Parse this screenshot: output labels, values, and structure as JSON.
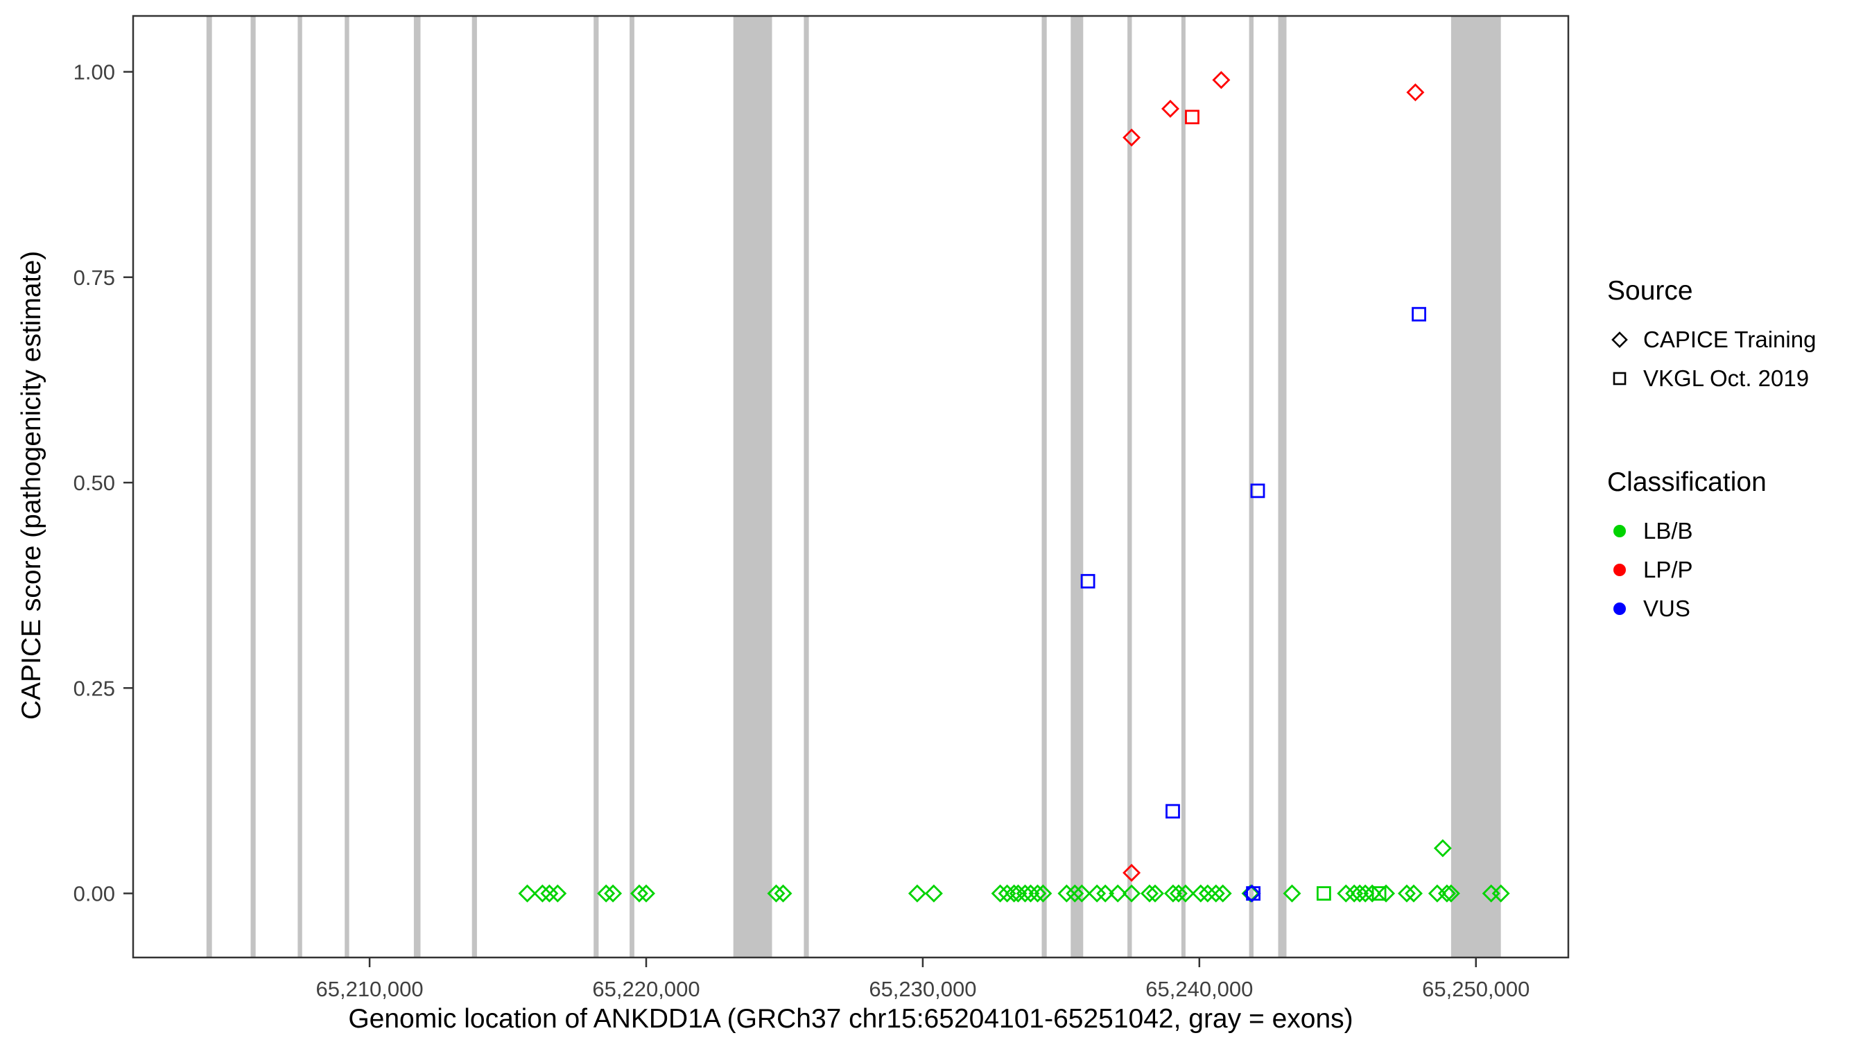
{
  "figure": {
    "x_axis_title": "Genomic location of ANKDD1A (GRCh37 chr15:65204101-65251042, gray = exons)",
    "y_axis_title": "CAPICE score (pathogenicity estimate)"
  },
  "legend": {
    "source": {
      "title": "Source",
      "items": [
        {
          "label": "CAPICE Training",
          "shape": "diamond"
        },
        {
          "label": "VKGL Oct. 2019",
          "shape": "square"
        }
      ]
    },
    "classification": {
      "title": "Classification",
      "items": [
        {
          "label": "LB/B",
          "color": "#00D300"
        },
        {
          "label": "LP/P",
          "color": "#FF0000"
        },
        {
          "label": "VUS",
          "color": "#0000FF"
        }
      ]
    }
  },
  "chart_data": {
    "type": "scatter",
    "title": "",
    "xlabel": "Genomic location of ANKDD1A (GRCh37 chr15:65204101-65251042, gray = exons)",
    "ylabel": "CAPICE score (pathogenicity estimate)",
    "xlim": [
      65201450,
      65253340
    ],
    "ylim": [
      -0.078,
      1.068
    ],
    "grid": false,
    "legend_position": "right",
    "xticks": [
      {
        "value": 65210000,
        "label": "65,210,000"
      },
      {
        "value": 65220000,
        "label": "65,220,000"
      },
      {
        "value": 65230000,
        "label": "65,230,000"
      },
      {
        "value": 65240000,
        "label": "65,240,000"
      },
      {
        "value": 65250000,
        "label": "65,250,000"
      }
    ],
    "yticks": [
      {
        "value": 0.0,
        "label": "0.00"
      },
      {
        "value": 0.25,
        "label": "0.25"
      },
      {
        "value": 0.5,
        "label": "0.50"
      },
      {
        "value": 0.75,
        "label": "0.75"
      },
      {
        "value": 1.0,
        "label": "1.00"
      }
    ],
    "colors": {
      "LB/B": "#00D300",
      "LP/P": "#FF0000",
      "VUS": "#0000FF",
      "exon": "#C3C3C3",
      "axis": "#333333",
      "tick_text": "#404040"
    },
    "shape_by_source": {
      "CAPICE Training": "diamond",
      "VKGL Oct. 2019": "square"
    },
    "exons": [
      [
        65204101,
        65204300
      ],
      [
        65205700,
        65205880
      ],
      [
        65207400,
        65207560
      ],
      [
        65209100,
        65209260
      ],
      [
        65211600,
        65211840
      ],
      [
        65213700,
        65213880
      ],
      [
        65218100,
        65218280
      ],
      [
        65219400,
        65219570
      ],
      [
        65223150,
        65224550
      ],
      [
        65225700,
        65225880
      ],
      [
        65234300,
        65234480
      ],
      [
        65235350,
        65235800
      ],
      [
        65237400,
        65237560
      ],
      [
        65239350,
        65239500
      ],
      [
        65241800,
        65241960
      ],
      [
        65242850,
        65243150
      ],
      [
        65249100,
        65250900
      ]
    ],
    "points_format": [
      "genomic_position",
      "capice_score",
      "source",
      "classification"
    ],
    "points": [
      [
        65215700,
        0,
        "CAPICE Training",
        "LB/B"
      ],
      [
        65216250,
        0,
        "CAPICE Training",
        "LB/B"
      ],
      [
        65216500,
        0,
        "CAPICE Training",
        "LB/B"
      ],
      [
        65216800,
        0,
        "CAPICE Training",
        "LB/B"
      ],
      [
        65218550,
        0,
        "CAPICE Training",
        "LB/B"
      ],
      [
        65218800,
        0,
        "CAPICE Training",
        "LB/B"
      ],
      [
        65219750,
        0,
        "CAPICE Training",
        "LB/B"
      ],
      [
        65220000,
        0,
        "CAPICE Training",
        "LB/B"
      ],
      [
        65224700,
        0,
        "CAPICE Training",
        "LB/B"
      ],
      [
        65224950,
        0,
        "CAPICE Training",
        "LB/B"
      ],
      [
        65229800,
        0,
        "CAPICE Training",
        "LB/B"
      ],
      [
        65230400,
        0,
        "CAPICE Training",
        "LB/B"
      ],
      [
        65232800,
        0,
        "CAPICE Training",
        "LB/B"
      ],
      [
        65233050,
        0,
        "CAPICE Training",
        "LB/B"
      ],
      [
        65233300,
        0,
        "CAPICE Training",
        "LB/B"
      ],
      [
        65233450,
        0,
        "CAPICE Training",
        "LB/B"
      ],
      [
        65233700,
        0,
        "CAPICE Training",
        "LB/B"
      ],
      [
        65233900,
        0,
        "CAPICE Training",
        "LB/B"
      ],
      [
        65234150,
        0,
        "CAPICE Training",
        "LB/B"
      ],
      [
        65234350,
        0,
        "CAPICE Training",
        "LB/B"
      ],
      [
        65235200,
        0,
        "CAPICE Training",
        "LB/B"
      ],
      [
        65235500,
        0,
        "CAPICE Training",
        "LB/B"
      ],
      [
        65235750,
        0,
        "CAPICE Training",
        "LB/B"
      ],
      [
        65236300,
        0,
        "CAPICE Training",
        "LB/B"
      ],
      [
        65236600,
        0,
        "CAPICE Training",
        "LB/B"
      ],
      [
        65237050,
        0,
        "CAPICE Training",
        "LB/B"
      ],
      [
        65237550,
        0,
        "CAPICE Training",
        "LB/B"
      ],
      [
        65238200,
        0,
        "CAPICE Training",
        "LB/B"
      ],
      [
        65238400,
        0,
        "CAPICE Training",
        "LB/B"
      ],
      [
        65239050,
        0,
        "CAPICE Training",
        "LB/B"
      ],
      [
        65239250,
        0,
        "CAPICE Training",
        "LB/B"
      ],
      [
        65239500,
        0,
        "CAPICE Training",
        "LB/B"
      ],
      [
        65240050,
        0,
        "CAPICE Training",
        "LB/B"
      ],
      [
        65240300,
        0,
        "CAPICE Training",
        "LB/B"
      ],
      [
        65240600,
        0,
        "CAPICE Training",
        "LB/B"
      ],
      [
        65240850,
        0,
        "CAPICE Training",
        "LB/B"
      ],
      [
        65241850,
        0,
        "CAPICE Training",
        "LB/B"
      ],
      [
        65243350,
        0,
        "CAPICE Training",
        "LB/B"
      ],
      [
        65244500,
        0,
        "VKGL Oct. 2019",
        "LB/B"
      ],
      [
        65245300,
        0,
        "CAPICE Training",
        "LB/B"
      ],
      [
        65245600,
        0,
        "CAPICE Training",
        "LB/B"
      ],
      [
        65245800,
        0,
        "CAPICE Training",
        "LB/B"
      ],
      [
        65246000,
        0,
        "CAPICE Training",
        "LB/B"
      ],
      [
        65246250,
        0,
        "CAPICE Training",
        "LB/B"
      ],
      [
        65246500,
        0,
        "VKGL Oct. 2019",
        "LB/B"
      ],
      [
        65246750,
        0,
        "CAPICE Training",
        "LB/B"
      ],
      [
        65247500,
        0,
        "CAPICE Training",
        "LB/B"
      ],
      [
        65247750,
        0,
        "CAPICE Training",
        "LB/B"
      ],
      [
        65248600,
        0,
        "CAPICE Training",
        "LB/B"
      ],
      [
        65248800,
        0.055,
        "CAPICE Training",
        "LB/B"
      ],
      [
        65248950,
        0,
        "CAPICE Training",
        "LB/B"
      ],
      [
        65249100,
        0,
        "CAPICE Training",
        "LB/B"
      ],
      [
        65250550,
        0,
        "CAPICE Training",
        "LB/B"
      ],
      [
        65250900,
        0,
        "CAPICE Training",
        "LB/B"
      ],
      [
        65237550,
        0.92,
        "CAPICE Training",
        "LP/P"
      ],
      [
        65238950,
        0.955,
        "CAPICE Training",
        "LP/P"
      ],
      [
        65239740,
        0.945,
        "VKGL Oct. 2019",
        "LP/P"
      ],
      [
        65240790,
        0.99,
        "CAPICE Training",
        "LP/P"
      ],
      [
        65247810,
        0.975,
        "CAPICE Training",
        "LP/P"
      ],
      [
        65237550,
        0.025,
        "CAPICE Training",
        "LP/P"
      ],
      [
        65235970,
        0.38,
        "VKGL Oct. 2019",
        "VUS"
      ],
      [
        65239040,
        0.1,
        "VKGL Oct. 2019",
        "VUS"
      ],
      [
        65242110,
        0.49,
        "VKGL Oct. 2019",
        "VUS"
      ],
      [
        65247940,
        0.705,
        "VKGL Oct. 2019",
        "VUS"
      ],
      [
        65241950,
        0,
        "VKGL Oct. 2019",
        "VUS"
      ],
      [
        65241900,
        0,
        "CAPICE Training",
        "VUS"
      ]
    ]
  }
}
